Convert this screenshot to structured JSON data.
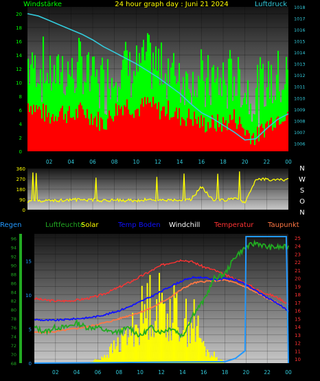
{
  "colors": {
    "wind_avg": "#ff0000",
    "wind_gust": "#00ff00",
    "pressure": "#33ccdd",
    "winddir": "#ffff00",
    "rain": "#2299ff",
    "humidity": "#22aa22",
    "solar": "#ffff00",
    "temp_ground": "#1111ff",
    "windchill": "#ffffff",
    "temperature": "#ff3333",
    "dewpoint": "#ff7744"
  },
  "chart_data": [
    {
      "type": "bar",
      "title": "24 hour graph day : Juni 21 2024",
      "y_left_label": "Windstärke",
      "y_right_label": "Luftdruck",
      "ylim_left": [
        0,
        21
      ],
      "yticks_left": [
        "0",
        "2",
        "4",
        "6",
        "8",
        "10",
        "12",
        "14",
        "16",
        "18",
        "20"
      ],
      "ylim_right": [
        1005.3,
        1018
      ],
      "yticks_right": [
        "1006",
        "1007",
        "1008",
        "1009",
        "1010",
        "1011",
        "1012",
        "1013",
        "1014",
        "1015",
        "1016",
        "1017",
        "1018"
      ],
      "x_ticks": [
        "02",
        "04",
        "06",
        "08",
        "10",
        "12",
        "14",
        "16",
        "18",
        "20",
        "22",
        "00"
      ],
      "grid": true,
      "series": [
        {
          "name": "Windstärke",
          "x": [
            0,
            1,
            2,
            3,
            4,
            5,
            6,
            7,
            8,
            9,
            10,
            11,
            12,
            13,
            14,
            15,
            16,
            17,
            18,
            19,
            20,
            21,
            22,
            23,
            24
          ],
          "values": [
            7,
            6,
            5,
            6,
            5,
            6,
            5,
            4,
            6,
            7,
            6,
            7,
            6,
            6,
            5,
            5,
            4,
            4,
            4,
            5,
            3,
            2,
            4,
            5,
            6
          ]
        },
        {
          "name": "Luftdruck",
          "x": [
            0,
            1,
            2,
            3,
            4,
            5,
            6,
            7,
            8,
            9,
            10,
            11,
            12,
            13,
            14,
            15,
            16,
            17,
            18,
            19,
            20,
            21,
            22,
            23,
            24
          ],
          "values": [
            1017.4,
            1017.2,
            1016.8,
            1016.4,
            1016.0,
            1015.6,
            1015.1,
            1014.5,
            1014.0,
            1013.5,
            1013.0,
            1012.4,
            1011.8,
            1011.1,
            1010.4,
            1009.5,
            1008.7,
            1008.2,
            1007.6,
            1007.0,
            1006.3,
            1006.4,
            1007.3,
            1008.1,
            1008.6
          ]
        }
      ]
    },
    {
      "type": "line",
      "y_right_labels": [
        "N",
        "W",
        "S",
        "O",
        "N"
      ],
      "ylim": [
        0,
        360
      ],
      "yticks": [
        "0",
        "90",
        "180",
        "270",
        "360"
      ],
      "grid": true,
      "series": [
        {
          "name": "",
          "x": [
            0,
            1,
            2,
            3,
            4,
            5,
            6,
            7,
            8,
            9,
            10,
            11,
            12,
            13,
            14,
            15,
            16,
            17,
            18,
            19,
            20,
            21,
            22,
            23,
            24
          ],
          "values": [
            75,
            80,
            78,
            82,
            90,
            85,
            88,
            80,
            85,
            82,
            80,
            88,
            85,
            80,
            85,
            88,
            200,
            90,
            85,
            95,
            70,
            260,
            265,
            262,
            265
          ]
        }
      ]
    },
    {
      "type": "line",
      "legend": [
        "Regen",
        "Luftfeuchte",
        "Solar",
        "Temp Boden",
        "Windchill",
        "Temperatur",
        "Taupunkt"
      ],
      "rain_ticks": [
        "0",
        "5",
        "10",
        "15"
      ],
      "rain_ylim": [
        0,
        19
      ],
      "humidity_ticks": [
        "68",
        "70",
        "72",
        "74",
        "76",
        "78",
        "80",
        "82",
        "84",
        "86",
        "88",
        "90",
        "92",
        "94",
        "96"
      ],
      "humidity_ylim": [
        68,
        97
      ],
      "temp_ticks": [
        "10",
        "11",
        "12",
        "13",
        "14",
        "15",
        "16",
        "17",
        "18",
        "19",
        "20",
        "21",
        "22",
        "23",
        "24",
        "25"
      ],
      "temp_ylim": [
        9.5,
        25.5
      ],
      "x_ticks": [
        "02",
        "04",
        "06",
        "08",
        "10",
        "12",
        "14",
        "16",
        "18",
        "20",
        "22",
        "00"
      ],
      "grid": true,
      "series": [
        {
          "name": "Temperatur",
          "x": [
            0,
            1,
            2,
            3,
            4,
            5,
            6,
            7,
            8,
            9,
            10,
            11,
            12,
            13,
            14,
            15,
            16,
            17,
            18,
            19,
            20,
            21,
            22,
            23,
            24
          ],
          "values": [
            17.5,
            17.3,
            17.2,
            17.2,
            17.3,
            17.5,
            17.8,
            18.3,
            18.9,
            19.5,
            20.2,
            20.9,
            21.6,
            22.0,
            22.3,
            22.0,
            21.4,
            21.0,
            20.4,
            19.9,
            19.4,
            18.6,
            18.1,
            17.6,
            16.8
          ]
        },
        {
          "name": "Temp Boden",
          "x": [
            0,
            1,
            2,
            3,
            4,
            5,
            6,
            7,
            8,
            9,
            10,
            11,
            12,
            13,
            14,
            15,
            16,
            17,
            18,
            19,
            20,
            21,
            22,
            23,
            24
          ],
          "values": [
            14.9,
            14.8,
            14.8,
            14.9,
            15.0,
            15.1,
            15.3,
            15.6,
            16.0,
            16.5,
            17.1,
            17.7,
            18.4,
            19.1,
            19.7,
            20.1,
            20.1,
            19.8,
            20.0,
            19.8,
            19.2,
            18.4,
            17.6,
            16.9,
            15.9
          ]
        },
        {
          "name": "Taupunkt",
          "x": [
            0,
            1,
            2,
            3,
            4,
            5,
            6,
            7,
            8,
            9,
            10,
            11,
            12,
            13,
            14,
            15,
            16,
            17,
            18,
            19,
            20,
            21,
            22,
            23,
            24
          ],
          "values": [
            13.3,
            13.3,
            13.4,
            13.6,
            13.8,
            14.0,
            14.3,
            14.6,
            15.0,
            15.4,
            15.8,
            16.3,
            17.0,
            17.8,
            18.7,
            19.4,
            19.6,
            19.7,
            19.8,
            19.4,
            18.9,
            18.2,
            17.5,
            16.9,
            16.0
          ]
        },
        {
          "name": "Luftfeuchte",
          "x": [
            0,
            1,
            2,
            3,
            4,
            5,
            6,
            7,
            8,
            9,
            10,
            11,
            12,
            13,
            14,
            15,
            16,
            17,
            18,
            19,
            20,
            21,
            22,
            23,
            24
          ],
          "values": [
            76,
            75,
            76,
            76,
            77,
            76,
            76,
            75,
            75,
            76,
            74,
            76,
            75,
            76,
            74,
            79,
            82,
            87,
            88,
            92,
            94,
            95,
            94,
            94,
            94
          ]
        },
        {
          "name": "Regen",
          "x": [
            0,
            18,
            19,
            19.9,
            20,
            21,
            22,
            23,
            23.8,
            24
          ],
          "values": [
            0,
            0.2,
            0.7,
            1.8,
            18.6,
            18.6,
            18.6,
            18.6,
            18.6,
            0
          ]
        },
        {
          "name": "Solar",
          "x": [
            0,
            5,
            6,
            7,
            8,
            9,
            10,
            11,
            12,
            13,
            14,
            15,
            16,
            17,
            18,
            24
          ],
          "values": [
            0,
            0,
            0.3,
            0.8,
            1.5,
            2.3,
            3.5,
            4.5,
            4.2,
            3.8,
            3.0,
            3.2,
            1.0,
            0.5,
            0,
            0
          ]
        }
      ]
    }
  ]
}
